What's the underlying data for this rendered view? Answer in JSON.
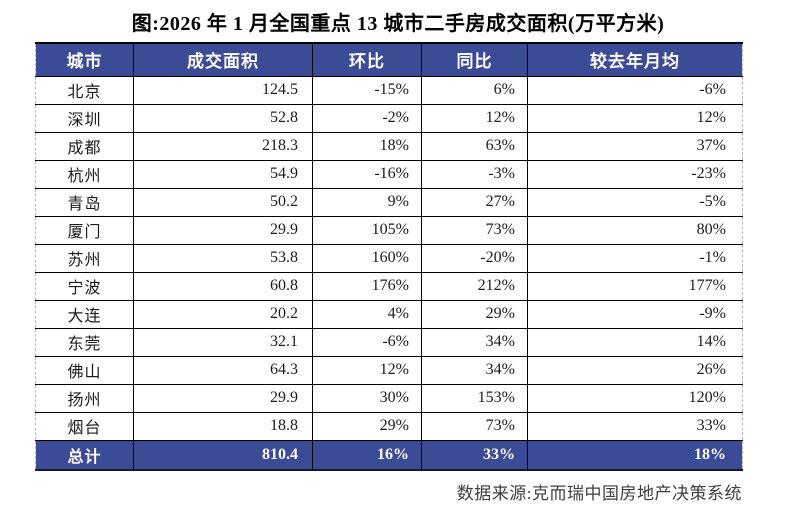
{
  "title": "图:2026 年 1 月全国重点 13 城市二手房成交面积(万平方米)",
  "colors": {
    "header_bg": "#3C4B96",
    "header_text": "#FFFFFF",
    "body_text": "#1C1C1C",
    "border": "#000000",
    "source_text": "#3F3F3F"
  },
  "table": {
    "columns": [
      "城市",
      "成交面积",
      "环比",
      "同比",
      "较去年月均"
    ],
    "rows": [
      {
        "city": "北京",
        "area": "124.5",
        "mom": "-15%",
        "yoy": "6%",
        "vs_avg": "-6%"
      },
      {
        "city": "深圳",
        "area": "52.8",
        "mom": "-2%",
        "yoy": "12%",
        "vs_avg": "12%"
      },
      {
        "city": "成都",
        "area": "218.3",
        "mom": "18%",
        "yoy": "63%",
        "vs_avg": "37%"
      },
      {
        "city": "杭州",
        "area": "54.9",
        "mom": "-16%",
        "yoy": "-3%",
        "vs_avg": "-23%"
      },
      {
        "city": "青岛",
        "area": "50.2",
        "mom": "9%",
        "yoy": "27%",
        "vs_avg": "-5%"
      },
      {
        "city": "厦门",
        "area": "29.9",
        "mom": "105%",
        "yoy": "73%",
        "vs_avg": "80%"
      },
      {
        "city": "苏州",
        "area": "53.8",
        "mom": "160%",
        "yoy": "-20%",
        "vs_avg": "-1%"
      },
      {
        "city": "宁波",
        "area": "60.8",
        "mom": "176%",
        "yoy": "212%",
        "vs_avg": "177%"
      },
      {
        "city": "大连",
        "area": "20.2",
        "mom": "4%",
        "yoy": "29%",
        "vs_avg": "-9%"
      },
      {
        "city": "东莞",
        "area": "32.1",
        "mom": "-6%",
        "yoy": "34%",
        "vs_avg": "14%"
      },
      {
        "city": "佛山",
        "area": "64.3",
        "mom": "12%",
        "yoy": "34%",
        "vs_avg": "26%"
      },
      {
        "city": "扬州",
        "area": "29.9",
        "mom": "30%",
        "yoy": "153%",
        "vs_avg": "120%"
      },
      {
        "city": "烟台",
        "area": "18.8",
        "mom": "29%",
        "yoy": "73%",
        "vs_avg": "33%"
      }
    ],
    "total": {
      "city": "总计",
      "area": "810.4",
      "mom": "16%",
      "yoy": "33%",
      "vs_avg": "18%"
    }
  },
  "footer": {
    "source": "数据来源:克而瑞中国房地产决策系统"
  }
}
